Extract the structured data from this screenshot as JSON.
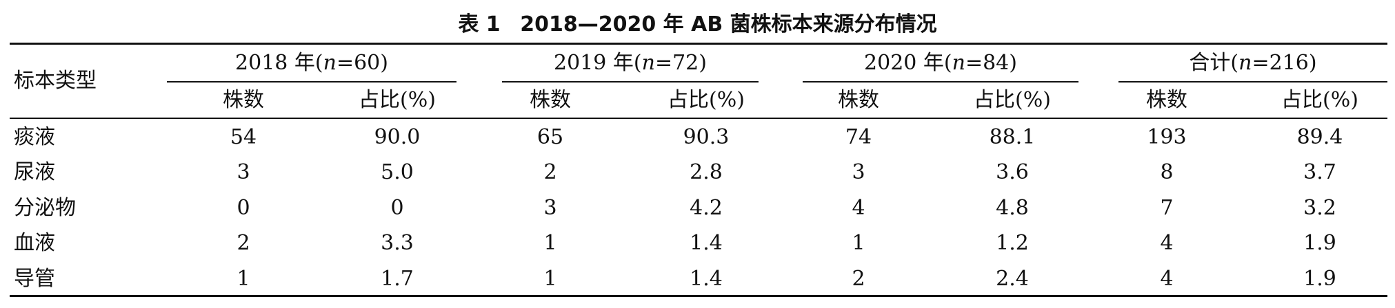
{
  "caption": {
    "label": "表 1",
    "title": "2018—2020 年 AB 菌株标本来源分布情况"
  },
  "header": {
    "row_label": "标本类型",
    "groups": [
      {
        "year": "2018 年(",
        "n_var": "n",
        "n_value": "=60)"
      },
      {
        "year": "2019 年(",
        "n_var": "n",
        "n_value": "=72)"
      },
      {
        "year": "2020 年(",
        "n_var": "n",
        "n_value": "=84)"
      },
      {
        "year": "合计(",
        "n_var": "n",
        "n_value": "=216)"
      }
    ],
    "sub_count": "株数",
    "sub_pct": "占比(%)"
  },
  "rows": [
    {
      "type": "痰液",
      "cells": [
        "54",
        "90.0",
        "65",
        "90.3",
        "74",
        "88.1",
        "193",
        "89.4"
      ]
    },
    {
      "type": "尿液",
      "cells": [
        "3",
        "5.0",
        "2",
        "2.8",
        "3",
        "3.6",
        "8",
        "3.7"
      ]
    },
    {
      "type": "分泌物",
      "cells": [
        "0",
        "0",
        "3",
        "4.2",
        "4",
        "4.8",
        "7",
        "3.2"
      ]
    },
    {
      "type": "血液",
      "cells": [
        "2",
        "3.3",
        "1",
        "1.4",
        "1",
        "1.2",
        "4",
        "1.9"
      ]
    },
    {
      "type": "导管",
      "cells": [
        "1",
        "1.7",
        "1",
        "1.4",
        "2",
        "2.4",
        "4",
        "1.9"
      ]
    }
  ]
}
